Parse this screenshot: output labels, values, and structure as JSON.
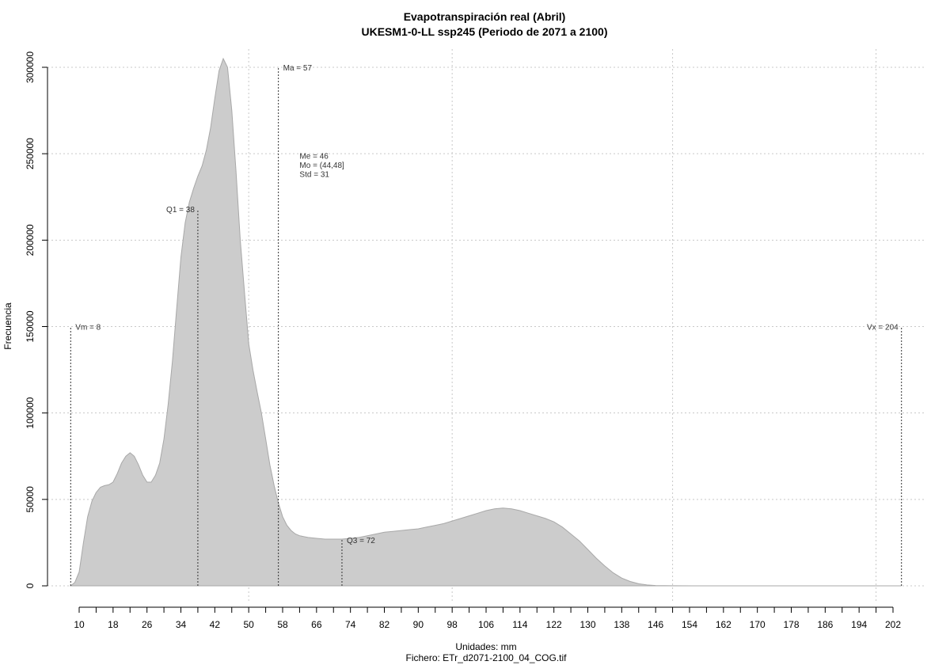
{
  "chart_data": {
    "type": "area",
    "title": "Evapotranspiración real (Abril)",
    "subtitle": "UKESM1-0-LL ssp245 (Periodo de 2071 a 2100)",
    "xlabel": "Unidades: mm",
    "ylabel": "Frecuencia",
    "caption": "Fichero: ETr_d2071-2100_04_COG.tif",
    "xlim": [
      10,
      202
    ],
    "ylim": [
      0,
      300000
    ],
    "x_ticks": [
      10,
      18,
      26,
      34,
      42,
      50,
      58,
      66,
      74,
      82,
      90,
      98,
      106,
      114,
      122,
      130,
      138,
      146,
      154,
      162,
      170,
      178,
      186,
      194,
      202
    ],
    "y_ticks": [
      0,
      50000,
      100000,
      150000,
      200000,
      250000,
      300000
    ],
    "y_tick_labels": [
      "0",
      "50000",
      "100000",
      "150000",
      "200000",
      "250000",
      "300000"
    ],
    "grid": true,
    "fill_color": "#cccccc",
    "line_color": "#a8a8a8",
    "series": [
      {
        "x": [
          8,
          9,
          10,
          11,
          12,
          13,
          14,
          15,
          16,
          17,
          18,
          19,
          20,
          21,
          22,
          23,
          24,
          25,
          26,
          27,
          28,
          29,
          30,
          31,
          32,
          33,
          34,
          35,
          36,
          37,
          38,
          39,
          40,
          41,
          42,
          43,
          44,
          45,
          46,
          47,
          48,
          49,
          50,
          51,
          52,
          53,
          54,
          55,
          56,
          57,
          58,
          59,
          60,
          61,
          62,
          64,
          66,
          68,
          70,
          72,
          74,
          76,
          78,
          80,
          82,
          84,
          86,
          88,
          90,
          92,
          94,
          96,
          98,
          100,
          102,
          104,
          106,
          108,
          110,
          112,
          114,
          116,
          118,
          120,
          122,
          124,
          126,
          128,
          130,
          132,
          134,
          136,
          138,
          140,
          142,
          144,
          146,
          148,
          150,
          155,
          160,
          170,
          180,
          190,
          200,
          204
        ],
        "y": [
          0,
          2000,
          8000,
          25000,
          40000,
          49000,
          54000,
          57000,
          58000,
          58500,
          60000,
          65000,
          71000,
          75000,
          77000,
          75000,
          70000,
          64000,
          60000,
          60000,
          64000,
          71000,
          85000,
          105000,
          130000,
          160000,
          190000,
          210000,
          222000,
          230000,
          237000,
          243000,
          252000,
          265000,
          282000,
          298000,
          305000,
          300000,
          275000,
          240000,
          200000,
          170000,
          140000,
          125000,
          112000,
          100000,
          85000,
          70000,
          58000,
          48000,
          40000,
          35000,
          32000,
          30000,
          29000,
          28000,
          27500,
          27000,
          27000,
          27000,
          27500,
          28000,
          29000,
          30000,
          31000,
          31500,
          32000,
          32500,
          33000,
          34000,
          35000,
          36000,
          37500,
          39000,
          40500,
          42000,
          43500,
          44500,
          45000,
          44500,
          43500,
          42000,
          40500,
          39000,
          37000,
          34000,
          30000,
          26000,
          21000,
          16000,
          11500,
          7500,
          4500,
          2500,
          1200,
          500,
          200,
          80,
          30,
          10,
          5,
          2,
          1,
          1,
          0,
          0
        ]
      }
    ],
    "annotations": [
      {
        "label": "Vm = 8",
        "x": 8,
        "y": 150000,
        "anchor": "start"
      },
      {
        "label": "Q1 = 38",
        "x": 38,
        "y": 218000,
        "anchor": "end"
      },
      {
        "label": "Ma = 57",
        "x": 57,
        "y": 300000,
        "anchor": "start"
      },
      {
        "label": "Q3 = 72",
        "x": 72,
        "y": 26500,
        "anchor": "start"
      },
      {
        "label": "Vx = 204",
        "x": 204,
        "y": 150000,
        "anchor": "end"
      }
    ],
    "vlines": [
      {
        "x": 8,
        "y": 150000
      },
      {
        "x": 38,
        "y": 218000
      },
      {
        "x": 57,
        "y": 300000
      },
      {
        "x": 72,
        "y": 26500
      },
      {
        "x": 204,
        "y": 150000
      }
    ],
    "stats_box": [
      "Me = 46",
      "Mo = (44,48]",
      "Std = 31"
    ],
    "stats_box_pos": {
      "x": 62,
      "y": 247000
    }
  }
}
